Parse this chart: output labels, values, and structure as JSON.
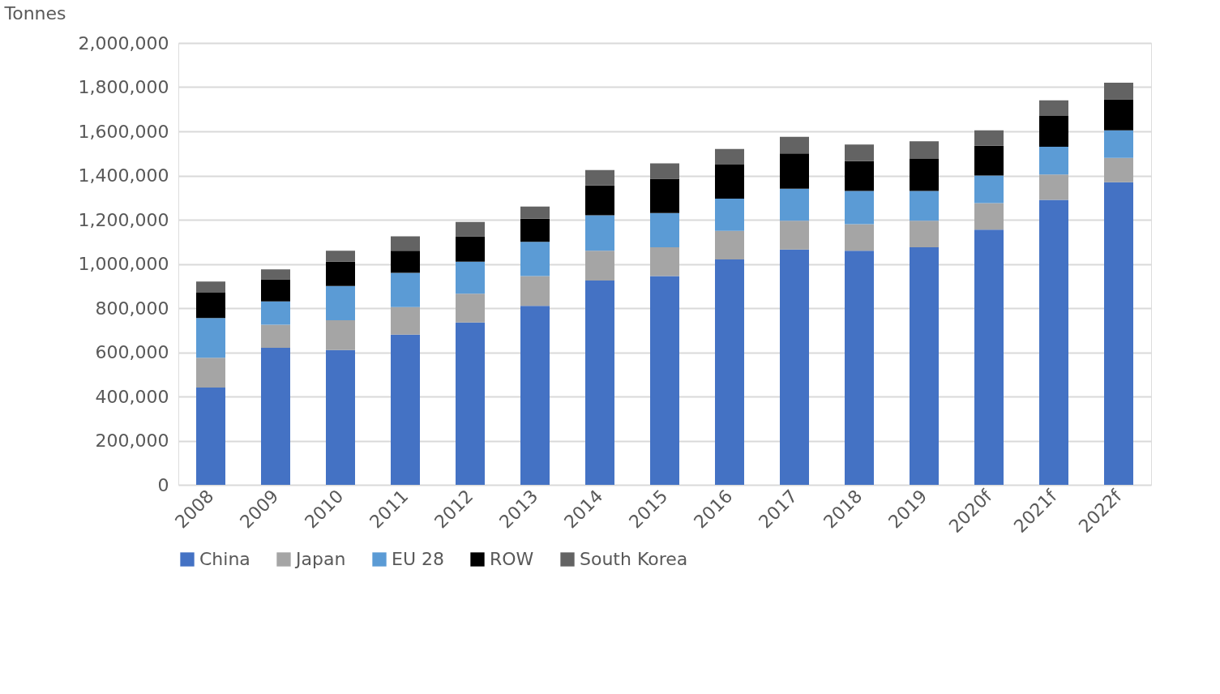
{
  "chart_data": {
    "type": "bar",
    "stacked": true,
    "ylabel": "Tonnes",
    "categories": [
      "2008",
      "2009",
      "2010",
      "2011",
      "2012",
      "2013",
      "2014",
      "2015",
      "2016",
      "2017",
      "2018",
      "2019",
      "2020f",
      "2021f",
      "2022f"
    ],
    "series": [
      {
        "name": "China",
        "color": "#4472c4",
        "values": [
          440000,
          620000,
          610000,
          680000,
          735000,
          810000,
          925000,
          945000,
          1020000,
          1065000,
          1060000,
          1075000,
          1155000,
          1290000,
          1370000
        ]
      },
      {
        "name": "Japan",
        "color": "#a5a5a5",
        "values": [
          135000,
          105000,
          135000,
          125000,
          130000,
          135000,
          135000,
          130000,
          130000,
          130000,
          120000,
          120000,
          120000,
          115000,
          110000
        ]
      },
      {
        "name": "EU 28",
        "color": "#5b9bd5",
        "values": [
          180000,
          105000,
          155000,
          155000,
          145000,
          155000,
          160000,
          155000,
          145000,
          145000,
          150000,
          135000,
          125000,
          125000,
          125000
        ]
      },
      {
        "name": "ROW",
        "color": "#000000",
        "values": [
          115000,
          100000,
          110000,
          100000,
          115000,
          105000,
          135000,
          155000,
          155000,
          160000,
          135000,
          145000,
          135000,
          140000,
          140000
        ]
      },
      {
        "name": "South Korea",
        "color": "#636363",
        "values": [
          50000,
          45000,
          50000,
          65000,
          65000,
          55000,
          70000,
          70000,
          70000,
          75000,
          75000,
          80000,
          70000,
          70000,
          75000
        ]
      }
    ],
    "ylim": [
      0,
      2000000
    ],
    "yticks": [
      {
        "value": 0,
        "label": "0"
      },
      {
        "value": 200000,
        "label": "200,000"
      },
      {
        "value": 400000,
        "label": "400,000"
      },
      {
        "value": 600000,
        "label": "600,000"
      },
      {
        "value": 800000,
        "label": "800,000"
      },
      {
        "value": 1000000,
        "label": "1,000,000"
      },
      {
        "value": 1200000,
        "label": "1,200,000"
      },
      {
        "value": 1400000,
        "label": "1,400,000"
      },
      {
        "value": 1600000,
        "label": "1,600,000"
      },
      {
        "value": 1800000,
        "label": "1,800,000"
      },
      {
        "value": 2000000,
        "label": "2,000,000"
      }
    ],
    "grid": "y",
    "legend": "bottom"
  }
}
